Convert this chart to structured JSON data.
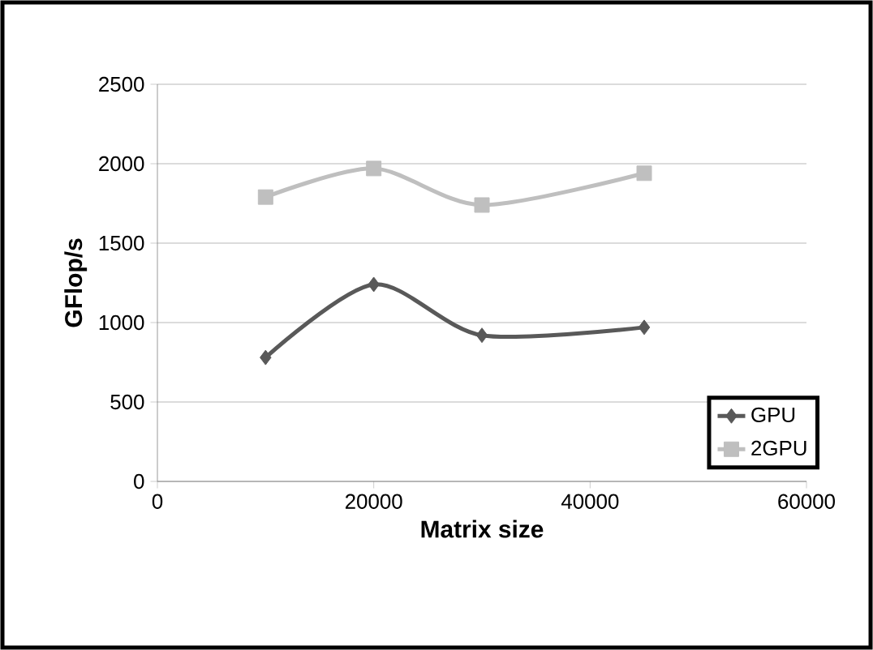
{
  "chart_data": {
    "type": "line",
    "xlabel": "Matrix size",
    "ylabel": "GFlop/s",
    "series": [
      {
        "name": "GPU",
        "color": "#595959",
        "marker": "diamond",
        "x": [
          10000,
          20000,
          30000,
          45000
        ],
        "values": [
          780,
          1240,
          920,
          970
        ]
      },
      {
        "name": "2GPU",
        "color": "#bfbfbf",
        "marker": "square",
        "x": [
          10000,
          20000,
          30000,
          45000
        ],
        "values": [
          1790,
          1970,
          1740,
          1940
        ]
      }
    ],
    "xlim": [
      0,
      60000
    ],
    "xticks": [
      0,
      20000,
      40000,
      60000
    ],
    "ylim": [
      0,
      2500
    ],
    "yticks": [
      0,
      500,
      1000,
      1500,
      2000,
      2500
    ],
    "grid": "y",
    "legend": "bottom right"
  }
}
